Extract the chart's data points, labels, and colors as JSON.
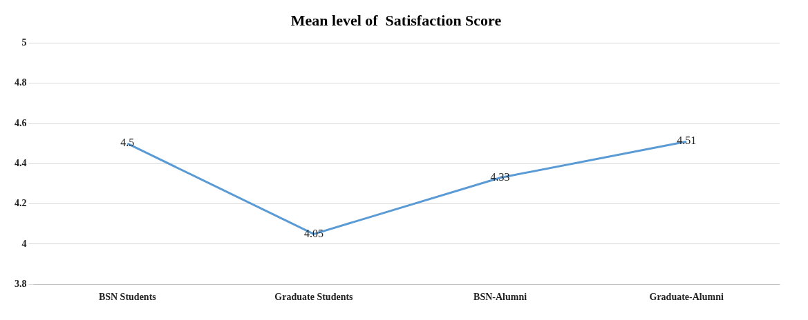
{
  "chart_data": {
    "type": "line",
    "title": "Mean level of  Satisfaction Score",
    "categories": [
      "BSN Students",
      "Graduate Students",
      "BSN-Alumni",
      "Graduate-Alumni"
    ],
    "series": [
      {
        "color": "#5b9bd5",
        "values": [
          4.5,
          4.05,
          4.33,
          4.51
        ]
      }
    ],
    "ylim": [
      3.8,
      5
    ],
    "yticks": [
      3.8,
      4,
      4.2,
      4.4,
      4.6,
      4.8,
      5
    ],
    "grid": "y",
    "data_labels": true,
    "marker": "none",
    "legend": false
  }
}
